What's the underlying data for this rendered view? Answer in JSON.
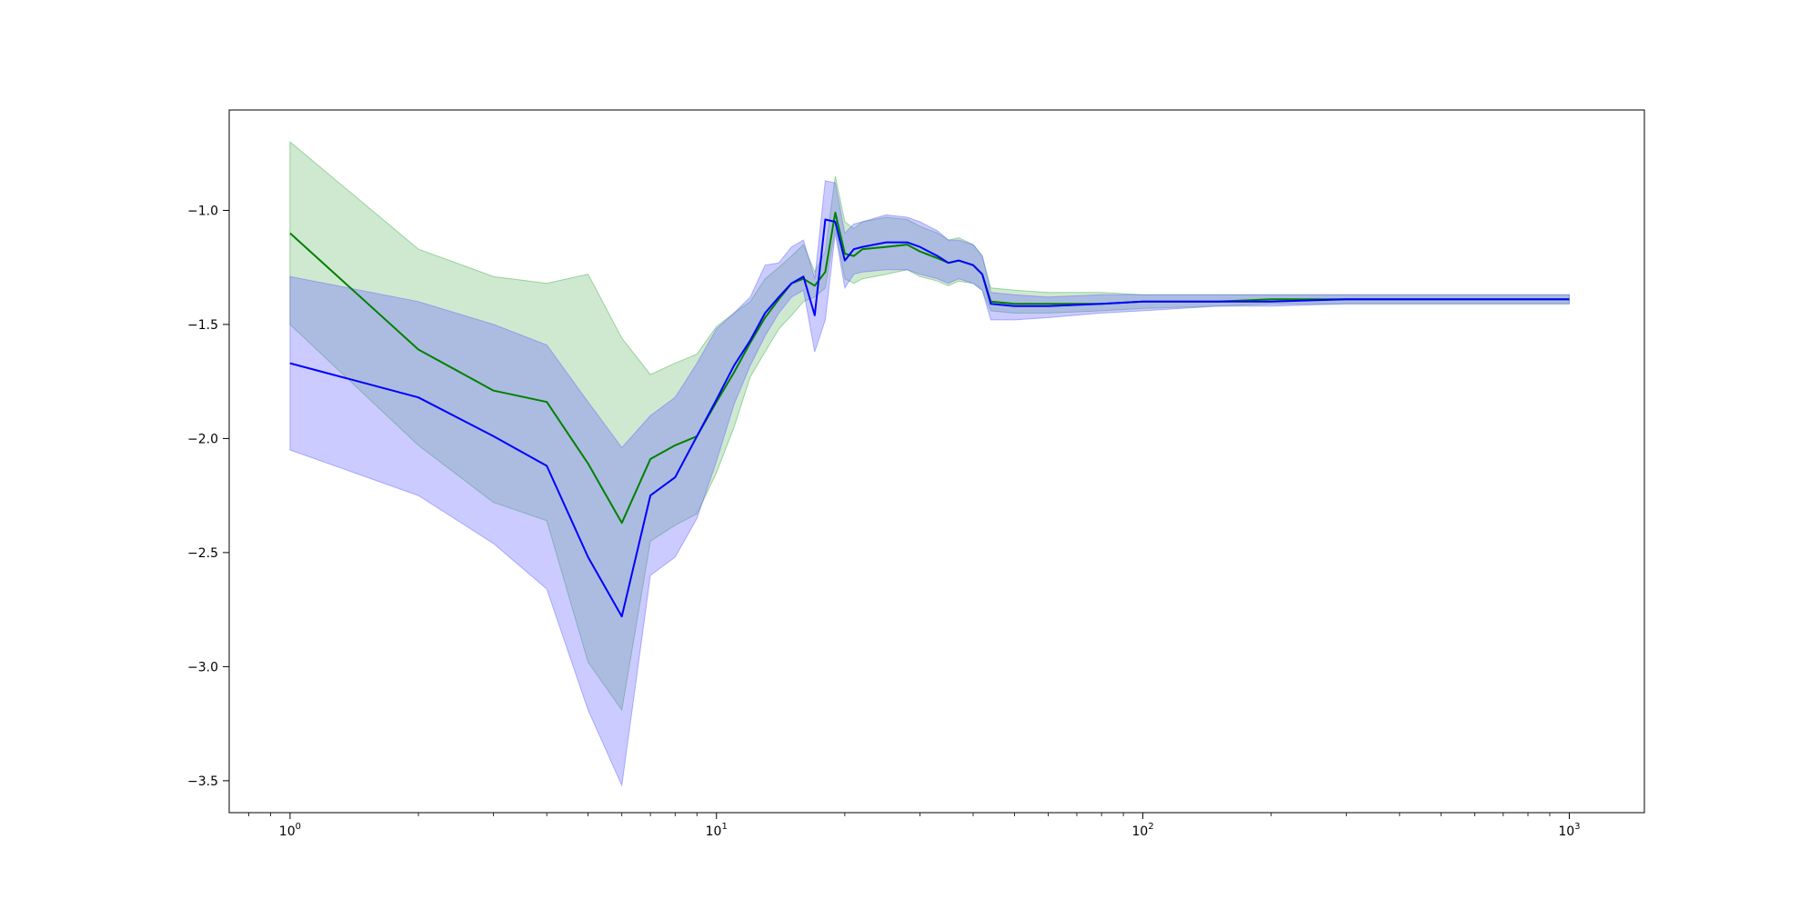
{
  "chart_data": {
    "type": "line",
    "title": "",
    "xlabel": "",
    "ylabel": "",
    "xscale": "log",
    "xlim": [
      0.72,
      1500
    ],
    "ylim": [
      -3.64,
      -0.56
    ],
    "grid": false,
    "legend": "none",
    "x_ticks": [
      {
        "base": "10",
        "exp": "0",
        "value": 1
      },
      {
        "base": "10",
        "exp": "1",
        "value": 10
      },
      {
        "base": "10",
        "exp": "2",
        "value": 100
      },
      {
        "base": "10",
        "exp": "3",
        "value": 1000
      }
    ],
    "y_ticks": [
      {
        "label": "−1.0",
        "value": -1.0
      },
      {
        "label": "−1.5",
        "value": -1.5
      },
      {
        "label": "−2.0",
        "value": -2.0
      },
      {
        "label": "−2.5",
        "value": -2.5
      },
      {
        "label": "−3.0",
        "value": -3.0
      },
      {
        "label": "−3.5",
        "value": -3.5
      }
    ],
    "series": [
      {
        "color": "#008000",
        "fill_color": "#4caf50",
        "fill_opacity": 0.27,
        "x": [
          1,
          2,
          3,
          4,
          5,
          6,
          7,
          8,
          9,
          10,
          11,
          12,
          13,
          14,
          15,
          16,
          17,
          18,
          19,
          20,
          21,
          22,
          25,
          28,
          30,
          33,
          35,
          37,
          40,
          42,
          44,
          50,
          60,
          80,
          100,
          150,
          200,
          300,
          500,
          700,
          1000
        ],
        "y": [
          -1.1,
          -1.61,
          -1.79,
          -1.84,
          -2.11,
          -2.37,
          -2.09,
          -2.03,
          -1.99,
          -1.84,
          -1.71,
          -1.58,
          -1.47,
          -1.39,
          -1.32,
          -1.3,
          -1.33,
          -1.27,
          -1.01,
          -1.19,
          -1.2,
          -1.17,
          -1.16,
          -1.15,
          -1.18,
          -1.21,
          -1.23,
          -1.22,
          -1.24,
          -1.28,
          -1.4,
          -1.41,
          -1.41,
          -1.41,
          -1.4,
          -1.4,
          -1.39,
          -1.39,
          -1.39,
          -1.39,
          -1.39
        ],
        "lower": [
          -1.5,
          -2.03,
          -2.28,
          -2.36,
          -2.98,
          -3.19,
          -2.45,
          -2.38,
          -2.33,
          -2.15,
          -1.95,
          -1.73,
          -1.62,
          -1.52,
          -1.46,
          -1.4,
          -1.38,
          -1.34,
          -1.08,
          -1.3,
          -1.32,
          -1.3,
          -1.28,
          -1.26,
          -1.29,
          -1.31,
          -1.33,
          -1.31,
          -1.32,
          -1.35,
          -1.44,
          -1.45,
          -1.45,
          -1.44,
          -1.43,
          -1.42,
          -1.41,
          -1.41,
          -1.41,
          -1.41,
          -1.41
        ],
        "upper": [
          -0.7,
          -1.17,
          -1.29,
          -1.32,
          -1.28,
          -1.56,
          -1.72,
          -1.67,
          -1.63,
          -1.51,
          -1.45,
          -1.4,
          -1.3,
          -1.25,
          -1.2,
          -1.15,
          -1.27,
          -1.18,
          -0.85,
          -1.05,
          -1.08,
          -1.05,
          -1.03,
          -1.04,
          -1.07,
          -1.1,
          -1.13,
          -1.12,
          -1.15,
          -1.2,
          -1.34,
          -1.35,
          -1.36,
          -1.36,
          -1.37,
          -1.37,
          -1.37,
          -1.37,
          -1.37,
          -1.37,
          -1.37
        ]
      },
      {
        "color": "#0000ff",
        "fill_color": "#6b6bff",
        "fill_opacity": 0.35,
        "x": [
          1,
          2,
          3,
          4,
          5,
          6,
          7,
          8,
          9,
          10,
          11,
          12,
          13,
          14,
          15,
          16,
          17,
          18,
          19,
          20,
          21,
          22,
          25,
          28,
          30,
          33,
          35,
          37,
          40,
          42,
          44,
          50,
          60,
          80,
          100,
          150,
          200,
          300,
          500,
          700,
          1000
        ],
        "y": [
          -1.67,
          -1.82,
          -1.99,
          -2.12,
          -2.52,
          -2.78,
          -2.25,
          -2.17,
          -1.99,
          -1.83,
          -1.68,
          -1.57,
          -1.45,
          -1.38,
          -1.32,
          -1.29,
          -1.46,
          -1.04,
          -1.05,
          -1.22,
          -1.17,
          -1.16,
          -1.14,
          -1.14,
          -1.16,
          -1.2,
          -1.23,
          -1.22,
          -1.24,
          -1.28,
          -1.41,
          -1.42,
          -1.42,
          -1.41,
          -1.4,
          -1.4,
          -1.4,
          -1.39,
          -1.39,
          -1.39,
          -1.39
        ],
        "lower": [
          -2.05,
          -2.25,
          -2.46,
          -2.66,
          -3.19,
          -3.52,
          -2.6,
          -2.52,
          -2.35,
          -2.1,
          -1.85,
          -1.68,
          -1.55,
          -1.45,
          -1.38,
          -1.35,
          -1.62,
          -1.48,
          -1.1,
          -1.34,
          -1.28,
          -1.27,
          -1.26,
          -1.26,
          -1.28,
          -1.3,
          -1.32,
          -1.3,
          -1.32,
          -1.35,
          -1.48,
          -1.48,
          -1.47,
          -1.45,
          -1.44,
          -1.42,
          -1.42,
          -1.41,
          -1.41,
          -1.41,
          -1.41
        ],
        "upper": [
          -1.29,
          -1.4,
          -1.5,
          -1.59,
          -1.84,
          -2.04,
          -1.9,
          -1.82,
          -1.67,
          -1.52,
          -1.45,
          -1.38,
          -1.24,
          -1.23,
          -1.16,
          -1.13,
          -1.3,
          -0.87,
          -0.88,
          -1.1,
          -1.06,
          -1.05,
          -1.02,
          -1.03,
          -1.05,
          -1.09,
          -1.13,
          -1.13,
          -1.15,
          -1.2,
          -1.36,
          -1.37,
          -1.38,
          -1.37,
          -1.37,
          -1.37,
          -1.37,
          -1.37,
          -1.37,
          -1.37,
          -1.37
        ]
      }
    ]
  }
}
